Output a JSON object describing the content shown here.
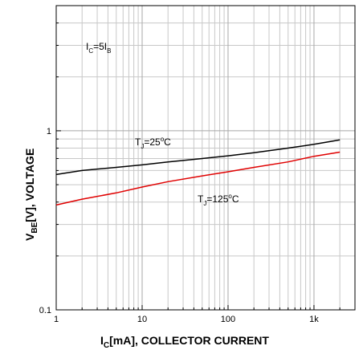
{
  "chart_data": {
    "type": "line",
    "title": "",
    "xscale": "log",
    "yscale": "log",
    "xlim": [
      1,
      3000
    ],
    "ylim": [
      0.1,
      5
    ],
    "grid": true,
    "xlabel": {
      "main": "I",
      "sub": "C",
      "rest": "[mA], COLLECTOR CURRENT"
    },
    "ylabel": {
      "main": "V",
      "sub": "BE",
      "rest": "[V], VOLTAGE"
    },
    "x_tick_labels": [
      {
        "value": 1,
        "label": "1"
      },
      {
        "value": 10,
        "label": "10"
      },
      {
        "value": 100,
        "label": "100"
      },
      {
        "value": 1000,
        "label": "1k"
      }
    ],
    "y_tick_labels": [
      {
        "value": 0.1,
        "label": "0.1"
      },
      {
        "value": 1,
        "label": "1"
      }
    ],
    "condition": {
      "a": "I",
      "a_sub": "C",
      "mid": "=5I",
      "b_sub": "B"
    },
    "series": [
      {
        "name": "T_J=25°C",
        "color": "#000000",
        "x": [
          1,
          2,
          5,
          10,
          20,
          50,
          100,
          200,
          500,
          1000,
          2000
        ],
        "y": [
          0.57,
          0.6,
          0.625,
          0.645,
          0.67,
          0.7,
          0.725,
          0.755,
          0.8,
          0.84,
          0.89
        ]
      },
      {
        "name": "T_J=125°C",
        "color": "#e00000",
        "x": [
          1,
          2,
          5,
          10,
          20,
          50,
          100,
          200,
          500,
          1000,
          2000
        ],
        "y": [
          0.385,
          0.415,
          0.45,
          0.485,
          0.52,
          0.56,
          0.59,
          0.625,
          0.67,
          0.72,
          0.76
        ]
      }
    ],
    "annotations": [
      {
        "main": "T",
        "sub": "J",
        "rest": "=25",
        "deg": "o",
        "unit": "C"
      },
      {
        "main": "T",
        "sub": "J",
        "rest": "=125",
        "deg": "o",
        "unit": "C"
      }
    ]
  }
}
